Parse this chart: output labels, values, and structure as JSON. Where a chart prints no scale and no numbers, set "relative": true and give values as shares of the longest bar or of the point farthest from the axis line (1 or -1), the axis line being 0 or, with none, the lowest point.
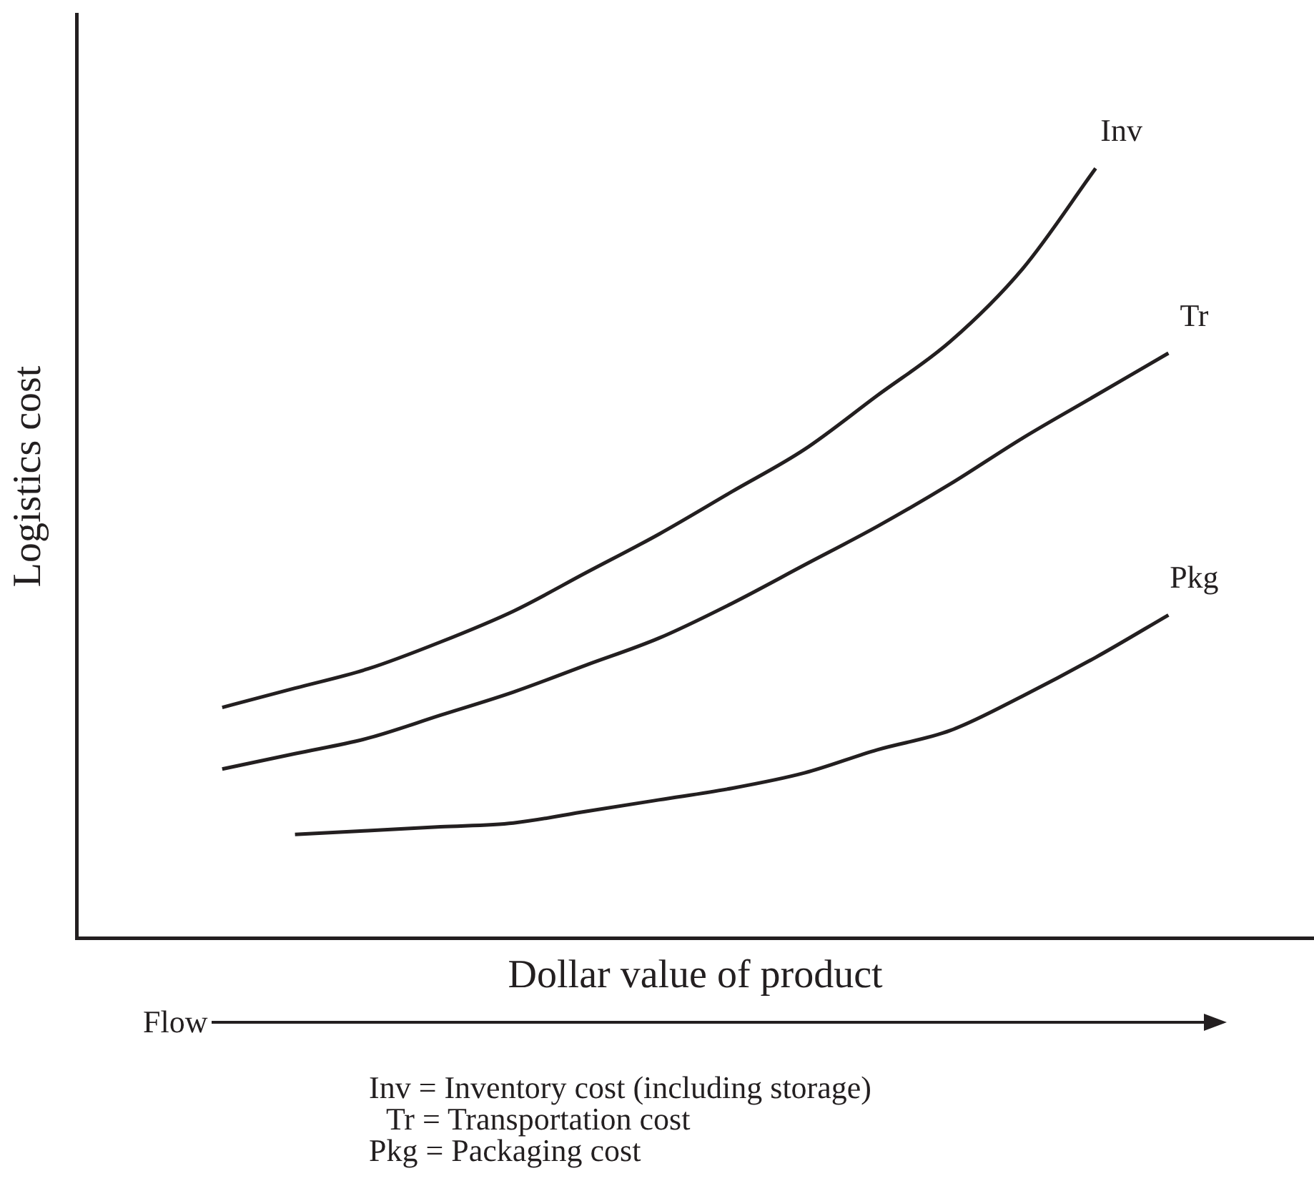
{
  "chart_data": {
    "type": "line",
    "relative": true,
    "xlabel": "Dollar value of product",
    "ylabel": "Logistics cost",
    "categories": [
      null,
      null,
      null,
      null,
      null,
      null,
      null,
      null,
      null,
      null,
      null,
      null,
      null,
      null,
      null,
      null,
      null,
      null
    ],
    "series": [
      {
        "name": "Inv",
        "color": "#231f20",
        "values": [
          null,
          null,
          0.3,
          0.325,
          0.35,
          0.385,
          0.425,
          0.475,
          0.525,
          0.58,
          0.635,
          0.705,
          0.775,
          0.87,
          1,
          null,
          null,
          null
        ]
      },
      {
        "name": "Tr",
        "color": "#231f20",
        "values": [
          null,
          null,
          0.22,
          0.24,
          0.26,
          0.29,
          0.32,
          0.355,
          0.39,
          0.435,
          0.485,
          0.535,
          0.59,
          0.65,
          0.705,
          0.76,
          null,
          null
        ]
      },
      {
        "name": "Pkg",
        "color": "#231f20",
        "values": [
          null,
          null,
          null,
          0.135,
          0.14,
          0.145,
          0.15,
          0.165,
          0.18,
          0.195,
          0.215,
          0.245,
          0.27,
          0.315,
          0.365,
          0.42,
          null,
          null
        ]
      }
    ],
    "annotations": [
      "Flow",
      "Inv = Inventory cost (including storage)",
      "Tr = Transportation cost",
      "Pkg = Packaging cost"
    ],
    "legend": false,
    "grid": false,
    "marker": "none",
    "line_style": "solid"
  }
}
